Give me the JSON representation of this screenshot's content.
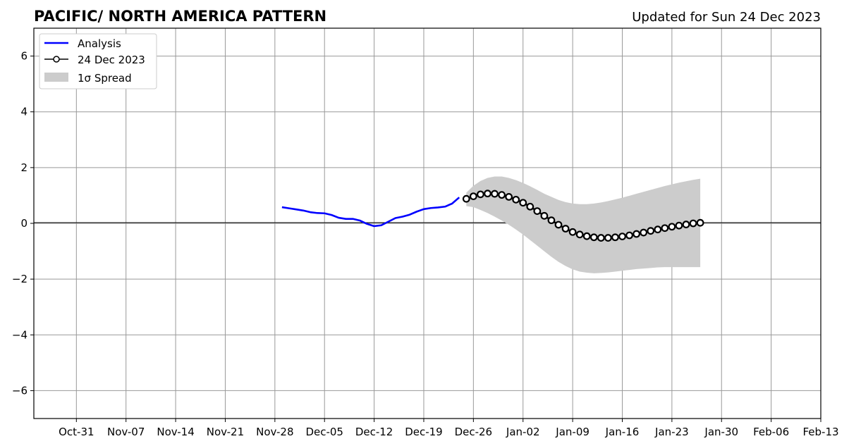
{
  "chart_data": {
    "type": "line",
    "title": "PACIFIC/ NORTH AMERICA PATTERN",
    "subtitle": "Updated for Sun 24 Dec 2023",
    "xlabel": "",
    "ylabel": "",
    "x_tick_labels": [
      "Oct-31",
      "Nov-07",
      "Nov-14",
      "Nov-21",
      "Nov-28",
      "Dec-05",
      "Dec-12",
      "Dec-19",
      "Dec-26",
      "Jan-02",
      "Jan-09",
      "Jan-16",
      "Jan-23",
      "Jan-30",
      "Feb-06",
      "Feb-13"
    ],
    "x_tick_days": [
      6,
      13,
      20,
      27,
      34,
      41,
      48,
      55,
      62,
      69,
      76,
      83,
      90,
      97,
      104,
      111
    ],
    "y_ticks": [
      6,
      4,
      2,
      0,
      -2,
      -4,
      -6
    ],
    "y_tick_labels": [
      "6",
      "4",
      "2",
      "0",
      "−2",
      "−4",
      "−6"
    ],
    "xlim": [
      0,
      111
    ],
    "ylim": [
      -7,
      7
    ],
    "grid": true,
    "legend_position": "top-left",
    "legend": [
      "Analysis",
      "24 Dec 2023",
      "1σ Spread"
    ],
    "colors": {
      "analysis": "#0000ff",
      "forecast": "#000000",
      "spread": "#cccccc",
      "grid": "#999999",
      "zero_line": "#000000"
    },
    "series": [
      {
        "name": "Analysis",
        "x": [
          35,
          36,
          37,
          38,
          39,
          40,
          41,
          42,
          43,
          44,
          45,
          46,
          47,
          48,
          49,
          50,
          51,
          52,
          53,
          54,
          55,
          56,
          57,
          58,
          59,
          60
        ],
        "y": [
          0.58,
          0.54,
          0.5,
          0.46,
          0.4,
          0.37,
          0.36,
          0.3,
          0.2,
          0.16,
          0.16,
          0.1,
          -0.02,
          -0.1,
          -0.07,
          0.06,
          0.19,
          0.24,
          0.31,
          0.42,
          0.51,
          0.55,
          0.57,
          0.6,
          0.71,
          0.93
        ]
      },
      {
        "name": "24 Dec 2023",
        "x": [
          61,
          62,
          63,
          64,
          65,
          66,
          67,
          68,
          69,
          70,
          71,
          72,
          73,
          74,
          75,
          76,
          77,
          78,
          79,
          80,
          81,
          82,
          83,
          84,
          85,
          86,
          87,
          88,
          89,
          90,
          91,
          92,
          93,
          94
        ],
        "y": [
          0.88,
          0.97,
          1.04,
          1.07,
          1.06,
          1.02,
          0.95,
          0.85,
          0.74,
          0.6,
          0.44,
          0.27,
          0.11,
          -0.05,
          -0.19,
          -0.31,
          -0.4,
          -0.46,
          -0.5,
          -0.52,
          -0.52,
          -0.5,
          -0.47,
          -0.43,
          -0.38,
          -0.33,
          -0.27,
          -0.22,
          -0.17,
          -0.12,
          -0.08,
          -0.04,
          0.0,
          0.02
        ]
      },
      {
        "name": "1σ Spread",
        "x": [
          61,
          62,
          63,
          64,
          65,
          66,
          67,
          68,
          69,
          70,
          71,
          72,
          73,
          74,
          75,
          76,
          77,
          78,
          79,
          80,
          81,
          82,
          83,
          84,
          85,
          86,
          87,
          88,
          89,
          90,
          91,
          92,
          93,
          94
        ],
        "upper": [
          1.1,
          1.35,
          1.52,
          1.63,
          1.68,
          1.68,
          1.63,
          1.55,
          1.45,
          1.33,
          1.2,
          1.06,
          0.95,
          0.84,
          0.76,
          0.71,
          0.69,
          0.69,
          0.71,
          0.75,
          0.8,
          0.86,
          0.92,
          0.99,
          1.06,
          1.13,
          1.2,
          1.27,
          1.34,
          1.4,
          1.46,
          1.51,
          1.56,
          1.6
        ],
        "lower": [
          0.62,
          0.58,
          0.48,
          0.37,
          0.24,
          0.1,
          -0.05,
          -0.22,
          -0.4,
          -0.6,
          -0.8,
          -1.0,
          -1.2,
          -1.38,
          -1.53,
          -1.65,
          -1.73,
          -1.77,
          -1.79,
          -1.78,
          -1.76,
          -1.73,
          -1.7,
          -1.67,
          -1.64,
          -1.62,
          -1.6,
          -1.58,
          -1.57,
          -1.57,
          -1.57,
          -1.57,
          -1.57,
          -1.57
        ]
      }
    ]
  }
}
